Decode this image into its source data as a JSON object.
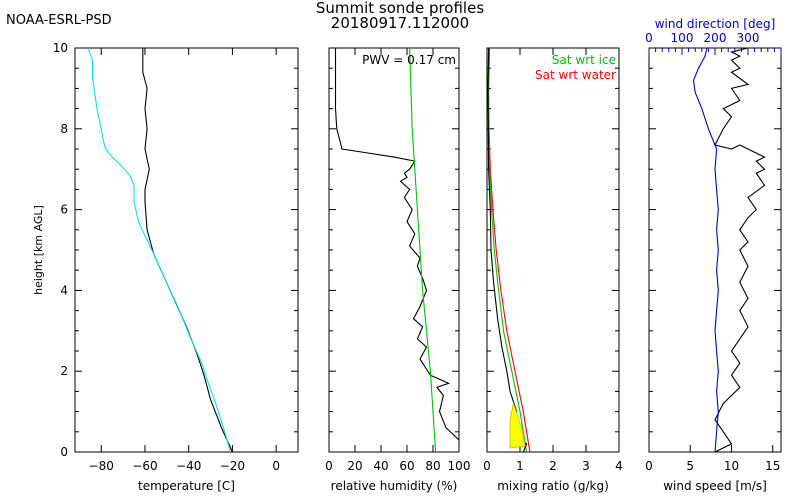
{
  "header": {
    "org": "NOAA-ESRL-PSD",
    "title_line1": "Summit sonde profiles",
    "title_line2": "20180917.112000"
  },
  "chart_data": [
    {
      "type": "line",
      "panel": "temperature",
      "xlabel": "temperature [C]",
      "ylabel": "height [km AGL]",
      "xlim": [
        -92,
        10
      ],
      "ylim": [
        0,
        10
      ],
      "x_ticks": [
        -80,
        -60,
        -40,
        -20,
        0
      ],
      "y_ticks": [
        0,
        2,
        4,
        6,
        8,
        10
      ],
      "series": [
        {
          "color": "#000000",
          "x": [
            -20,
            -25,
            -30,
            -32,
            -33,
            -36,
            -41,
            -46,
            -51,
            -56,
            -59,
            -60,
            -60,
            -58,
            -60,
            -59,
            -60,
            -59,
            -61,
            -61,
            -61
          ],
          "y": [
            0,
            0.6,
            1.3,
            1.7,
            1.9,
            2.4,
            3.1,
            3.7,
            4.3,
            4.9,
            5.5,
            6.2,
            6.5,
            7.0,
            7.5,
            8.0,
            8.5,
            9.0,
            9.4,
            9.7,
            10
          ]
        },
        {
          "color": "#00e5ee",
          "x": [
            -21,
            -23,
            -27,
            -31,
            -34,
            -39,
            -45,
            -51,
            -56,
            -63,
            -65,
            -65,
            -67,
            -71,
            -75,
            -78,
            -79,
            -80,
            -82,
            -83,
            -84,
            -84,
            -86
          ],
          "y": [
            0,
            0.4,
            1.1,
            1.7,
            2.2,
            2.8,
            3.6,
            4.3,
            4.9,
            5.7,
            6.2,
            6.6,
            6.85,
            7.1,
            7.3,
            7.5,
            7.7,
            8.0,
            8.5,
            8.9,
            9.3,
            9.7,
            10
          ]
        }
      ]
    },
    {
      "type": "line",
      "panel": "relative-humidity",
      "xlabel": "relative humidity (%)",
      "xlim": [
        0,
        100
      ],
      "ylim": [
        0,
        10
      ],
      "x_ticks": [
        0,
        20,
        40,
        60,
        80,
        100
      ],
      "annotation": "PWV = 0.17 cm",
      "series": [
        {
          "color": "#000000",
          "x": [
            100,
            90,
            85,
            88,
            83,
            92,
            85,
            78,
            70,
            75,
            68,
            72,
            65,
            70,
            75,
            72,
            68,
            70,
            62,
            66,
            60,
            64,
            58,
            62,
            55,
            60,
            58,
            62,
            64,
            66,
            50,
            30,
            10,
            6,
            5,
            5,
            5,
            5
          ],
          "y": [
            0.3,
            0.6,
            1.0,
            1.4,
            1.6,
            1.7,
            1.8,
            1.9,
            2.3,
            2.6,
            2.8,
            3.1,
            3.3,
            3.6,
            4.0,
            4.3,
            4.6,
            4.8,
            5.1,
            5.4,
            5.7,
            6.0,
            6.3,
            6.5,
            6.7,
            6.8,
            6.9,
            7.0,
            7.1,
            7.2,
            7.3,
            7.4,
            7.5,
            8.0,
            8.5,
            9.0,
            9.5,
            10
          ]
        },
        {
          "color": "#00c000",
          "x": [
            82,
            80,
            78,
            75,
            72,
            70,
            68,
            66,
            64,
            63,
            62
          ],
          "y": [
            0,
            1,
            2,
            3,
            4,
            5,
            6,
            7,
            8,
            9,
            10
          ]
        }
      ]
    },
    {
      "type": "line",
      "panel": "mixing-ratio",
      "xlabel": "mixing ratio (g/kg)",
      "xlim": [
        0,
        4
      ],
      "ylim": [
        0,
        10
      ],
      "x_ticks": [
        0,
        1,
        2,
        3,
        4
      ],
      "legend": [
        "Sat wrt ice",
        "Sat wrt water"
      ],
      "legend_colors": [
        "#00c000",
        "#ff0000"
      ],
      "series": [
        {
          "name": "Sat wrt water",
          "color": "#ff0000",
          "x": [
            1.3,
            1.1,
            0.85,
            0.6,
            0.42,
            0.28,
            0.18,
            0.1,
            0.06,
            0.05,
            0.08
          ],
          "y": [
            0,
            1,
            2,
            3,
            4,
            5,
            6,
            7,
            8,
            9,
            10
          ]
        },
        {
          "name": "Sat wrt ice",
          "color": "#00c000",
          "x": [
            1.2,
            1.0,
            0.75,
            0.5,
            0.35,
            0.22,
            0.14,
            0.08,
            0.05,
            0.04,
            0.06
          ],
          "y": [
            0,
            1,
            2,
            3,
            4,
            5,
            6,
            7,
            8,
            9,
            10
          ]
        },
        {
          "color": "#000000",
          "x": [
            1.1,
            1.2,
            0.85,
            1.05,
            0.8,
            0.9,
            0.7,
            0.6,
            0.45,
            0.32,
            0.2,
            0.12,
            0.1,
            0.05,
            0.04,
            0.03,
            0.05
          ],
          "y": [
            0,
            0.2,
            0.35,
            0.5,
            0.7,
            1.0,
            1.5,
            2.0,
            2.6,
            3.3,
            4.2,
            5.0,
            6.0,
            7.0,
            8.0,
            9.0,
            10
          ]
        },
        {
          "color": "#ffff00",
          "x": [
            0.7,
            1.15,
            1.05,
            0.8,
            0.7
          ],
          "y": [
            0.1,
            0.15,
            0.6,
            1.2,
            0.8
          ]
        }
      ]
    },
    {
      "type": "line",
      "panel": "wind",
      "xlabel": "wind speed [m/s]",
      "xlim": [
        0,
        16
      ],
      "ylim": [
        0,
        10
      ],
      "x_ticks": [
        0,
        5,
        10,
        15
      ],
      "top_axis": {
        "label": "wind direction [deg]",
        "xlim": [
          0,
          400
        ],
        "ticks": [
          0,
          100,
          200,
          300
        ]
      },
      "series": [
        {
          "color": "#000000",
          "x": [
            8,
            10,
            9,
            8,
            9,
            11,
            10,
            11,
            10,
            11,
            12,
            11,
            12,
            11,
            12,
            11,
            12,
            11,
            12,
            13,
            12,
            14,
            13,
            14,
            13,
            14,
            11,
            10,
            8,
            9,
            10,
            9,
            11,
            10,
            12,
            10,
            11,
            10,
            11,
            10,
            12,
            11
          ],
          "y": [
            0,
            0.2,
            0.5,
            0.8,
            1.2,
            1.6,
            1.9,
            2.2,
            2.5,
            2.8,
            3.1,
            3.5,
            3.8,
            4.2,
            4.6,
            5.0,
            5.2,
            5.5,
            5.8,
            6.0,
            6.3,
            6.6,
            6.9,
            7.0,
            7.2,
            7.3,
            7.6,
            7.5,
            7.6,
            8.0,
            8.3,
            8.5,
            8.7,
            9.0,
            9.1,
            9.4,
            9.5,
            9.7,
            9.8,
            9.9,
            10,
            10
          ]
        },
        {
          "color": "#0000cc",
          "x": [
            200,
            205,
            210,
            205,
            210,
            205,
            200,
            205,
            210,
            205,
            210,
            205,
            210,
            205,
            200,
            205,
            180,
            160,
            140,
            135,
            150,
            170,
            175
          ],
          "y": [
            0,
            0.5,
            1,
            1.5,
            2,
            2.5,
            3,
            3.5,
            4,
            4.5,
            5,
            5.5,
            6,
            6.5,
            7,
            7.5,
            8,
            8.5,
            8.9,
            9.2,
            9.5,
            9.8,
            10
          ]
        }
      ]
    }
  ]
}
